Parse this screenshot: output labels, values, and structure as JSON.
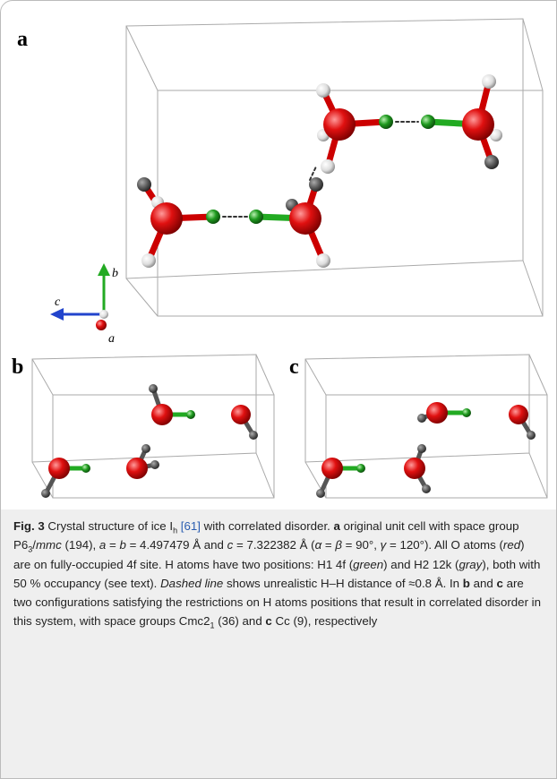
{
  "panels": {
    "a": {
      "label": "a",
      "axes": {
        "b": "b",
        "c": "c",
        "a": "a"
      }
    },
    "b": {
      "label": "b"
    },
    "c": {
      "label": "c"
    }
  },
  "caption": [
    "Fig. 3",
    " Crystal structure of ice I",
    "h",
    " [61]",
    " with correlated disorder. ",
    "a",
    " original unit cell with space group P6",
    "3",
    "/",
    "mmc",
    " (194), ",
    "a",
    " = ",
    "b",
    " = 4.497479 Å and ",
    "c",
    " = 7.322382 Å (",
    "α",
    " = ",
    "β",
    " = 90°, ",
    "γ",
    " = 120°). All O atoms (",
    "red",
    ") are on fully-occupied 4f site. H atoms have two positions: H1 4f (",
    "green",
    ") and H2 12k (",
    "gray",
    "), both with 50 % occupancy (see text). ",
    "Dashed line",
    " shows unrealistic H–H distance of ≈0.8 Å. In ",
    "b",
    " and ",
    "c",
    " are two configurations satisfying the restrictions on H atoms positions that result in correlated disorder in this system, with space groups Cmc2",
    "1",
    " (36) and ",
    "c",
    " Cc (9), respectively"
  ]
}
